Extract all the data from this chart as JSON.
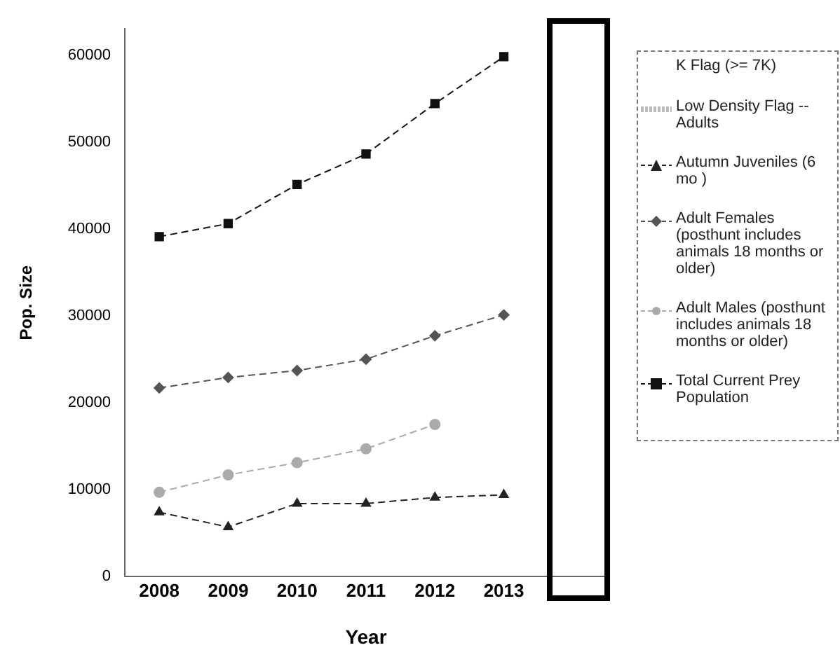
{
  "chart_data": {
    "type": "line",
    "xlabel": "Year",
    "ylabel": "Pop. Size",
    "categories": [
      "2008",
      "2009",
      "2010",
      "2011",
      "2012",
      "2013"
    ],
    "ylim": [
      0,
      63000
    ],
    "yticks": [
      0,
      10000,
      20000,
      30000,
      40000,
      50000,
      60000
    ],
    "grid": false,
    "legend": "right",
    "line_style": "dashed",
    "series": [
      {
        "name": "K Flag (>= 7K)",
        "marker": "none",
        "values": [
          null,
          null,
          null,
          null,
          null,
          null
        ]
      },
      {
        "name": "Low Density Flag -- Adults",
        "color": "#bbbbbb",
        "marker": "none",
        "values": [
          null,
          null,
          null,
          null,
          null,
          null
        ]
      },
      {
        "name": "Autumn Juveniles (6 mo )",
        "color": "#222222",
        "marker": "triangle",
        "values": [
          7400,
          5700,
          8400,
          8400,
          9100,
          9400
        ]
      },
      {
        "name": "Adult Females (posthunt includes animals 18 months or older)",
        "color": "#555555",
        "marker": "diamond",
        "values": [
          21700,
          22900,
          23700,
          25000,
          27700,
          30100
        ]
      },
      {
        "name": "Adult Males (posthunt includes animals 18 months or older)",
        "color": "#aaaaaa",
        "marker": "circle",
        "values": [
          9700,
          11700,
          13100,
          14700,
          17500,
          null
        ]
      },
      {
        "name": "Total Current Prey Population",
        "color": "#111111",
        "marker": "square",
        "values": [
          39100,
          40600,
          45100,
          48600,
          54400,
          59800
        ]
      }
    ]
  }
}
